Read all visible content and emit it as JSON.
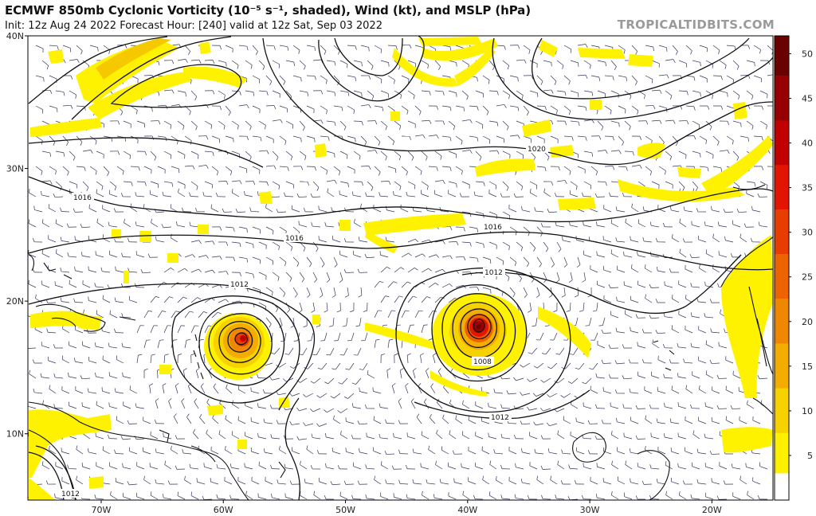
{
  "header": {
    "title": "ECMWF 850mb Cyclonic Vorticity (10⁻⁵ s⁻¹, shaded), Wind (kt), and MSLP (hPa)",
    "subtitle": "Init: 12z Aug 24 2022   Forecast Hour: [240]   valid at 12z Sat, Sep 03 2022",
    "brand": "TROPICALTIDBITS.COM"
  },
  "axes": {
    "lat_labels": [
      "40N",
      "30N",
      "20N",
      "10N"
    ],
    "lat_values": [
      40,
      30,
      20,
      10
    ],
    "lon_labels": [
      "70W",
      "60W",
      "50W",
      "40W",
      "30W",
      "20W"
    ],
    "lon_values": [
      -70,
      -60,
      -50,
      -40,
      -30,
      -20
    ],
    "lon_range": [
      -76,
      -15
    ],
    "lat_range": [
      5,
      40
    ]
  },
  "colorbar": {
    "labels": [
      "50",
      "45",
      "40",
      "35",
      "30",
      "25",
      "20",
      "15",
      "10",
      "5"
    ],
    "values": [
      50,
      45,
      40,
      35,
      30,
      25,
      20,
      15,
      10,
      5
    ],
    "range": [
      0,
      52
    ],
    "colors": [
      "#ffffff",
      "#fff000",
      "#f6d200",
      "#f2ad00",
      "#ef8800",
      "#ec6300",
      "#e83d00",
      "#e41500",
      "#c20000",
      "#960000",
      "#6a0000"
    ]
  },
  "isobars": {
    "labels": [
      "1020",
      "1016",
      "1016",
      "1016",
      "1012",
      "1012",
      "1012",
      "1008",
      "1012"
    ],
    "values": [
      1020,
      1016,
      1016,
      1016,
      1012,
      1012,
      1012,
      1008,
      1012
    ]
  },
  "cyclones": [
    {
      "name_semantic": "west-cyclone",
      "lat": 17.2,
      "lon": -57.5
    },
    {
      "name_semantic": "east-cyclone",
      "lat": 18.0,
      "lon": -38.5
    }
  ]
}
